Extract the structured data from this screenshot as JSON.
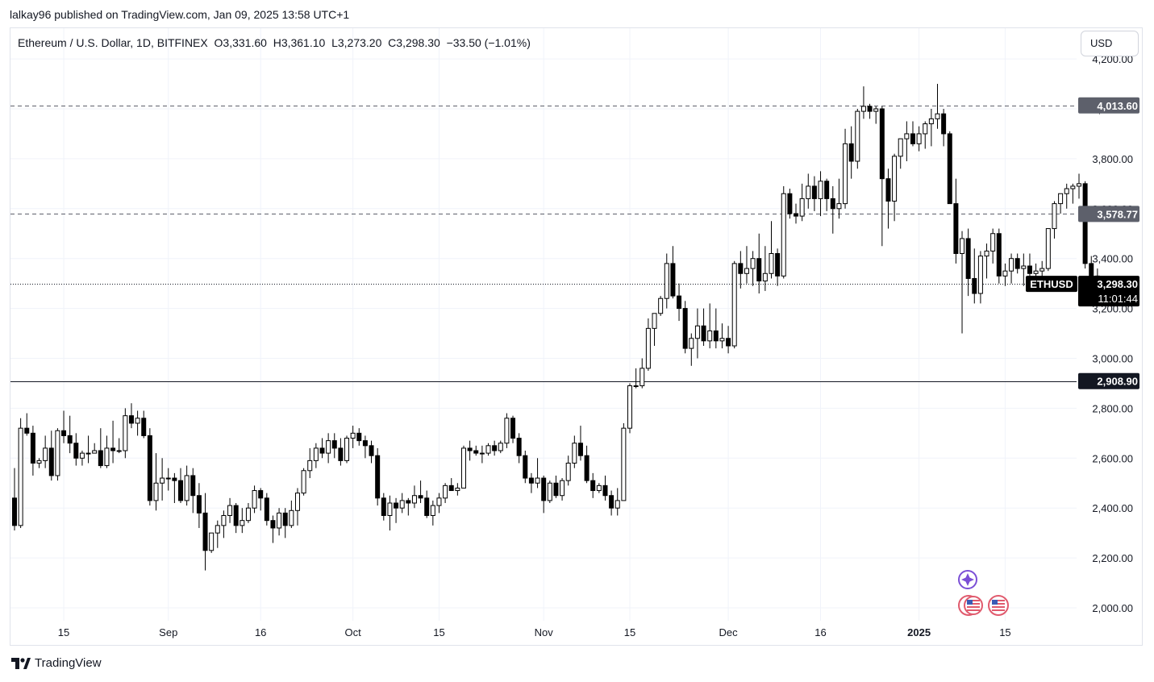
{
  "header": {
    "published": "lalkay96 published on TradingView.com, Jan 09, 2025 13:58 UTC+1"
  },
  "legend": {
    "symbol": "Ethereum / U.S. Dollar, 1D, BITFINEX",
    "open": "O3,331.60",
    "high": "H3,361.10",
    "low": "L3,273.20",
    "close": "C3,298.30",
    "change": "−33.50 (−1.01%)"
  },
  "currency_button": "USD",
  "brand": "TradingView",
  "colors": {
    "candle": "#000000",
    "candle_up_fill": "#ffffff",
    "grid": "#f0f3fa",
    "label_dark": "#131722",
    "label_grey": "#5d606b"
  },
  "chart_data": {
    "type": "candlestick",
    "symbol": "ETHUSD",
    "ylim": [
      1950,
      4260
    ],
    "y_ticks": [
      2000,
      2200,
      2400,
      2600,
      2800,
      3000,
      3200,
      3400,
      3600,
      3800,
      4000,
      4200
    ],
    "y_tick_labels": [
      "2,000.00",
      "2,200.00",
      "2,400.00",
      "2,600.00",
      "2,800.00",
      "3,000.00",
      "3,200.00",
      "3,400.00",
      "3,600.00",
      "3,800.00",
      "4,000.00",
      "4,200.00"
    ],
    "x_ticks": [
      {
        "label": "15",
        "date": "2024-08-15",
        "bold": false
      },
      {
        "label": "Sep",
        "date": "2024-09-01",
        "bold": false
      },
      {
        "label": "16",
        "date": "2024-09-16",
        "bold": false
      },
      {
        "label": "Oct",
        "date": "2024-10-01",
        "bold": false
      },
      {
        "label": "15",
        "date": "2024-10-15",
        "bold": false
      },
      {
        "label": "Nov",
        "date": "2024-11-01",
        "bold": false
      },
      {
        "label": "15",
        "date": "2024-11-15",
        "bold": false
      },
      {
        "label": "Dec",
        "date": "2024-12-01",
        "bold": false
      },
      {
        "label": "16",
        "date": "2024-12-16",
        "bold": false
      },
      {
        "label": "2025",
        "date": "2025-01-01",
        "bold": true
      },
      {
        "label": "15",
        "date": "2025-01-15",
        "bold": false
      }
    ],
    "horizontal_levels": [
      {
        "value": 4013.6,
        "label": "4,013.60",
        "style": "dashed"
      },
      {
        "value": 3578.77,
        "label": "3,578.77",
        "style": "dashed"
      },
      {
        "value": 2908.9,
        "label": "2,908.90",
        "style": "solid"
      }
    ],
    "last_price": {
      "value": 3298.3,
      "label": "3,298.30",
      "countdown": "11:01:44",
      "symbol_label": "ETHUSD"
    },
    "first_date": "2024-08-07",
    "candles": [
      [
        2440,
        2560,
        2310,
        2330
      ],
      [
        2330,
        2760,
        2320,
        2720
      ],
      [
        2720,
        2780,
        2690,
        2700
      ],
      [
        2700,
        2730,
        2530,
        2580
      ],
      [
        2580,
        2600,
        2560,
        2590
      ],
      [
        2590,
        2690,
        2560,
        2640
      ],
      [
        2640,
        2710,
        2510,
        2530
      ],
      [
        2530,
        2720,
        2510,
        2710
      ],
      [
        2710,
        2790,
        2660,
        2690
      ],
      [
        2690,
        2770,
        2620,
        2660
      ],
      [
        2660,
        2700,
        2570,
        2600
      ],
      [
        2600,
        2630,
        2570,
        2620
      ],
      [
        2620,
        2690,
        2580,
        2620
      ],
      [
        2620,
        2660,
        2620,
        2630
      ],
      [
        2630,
        2720,
        2560,
        2570
      ],
      [
        2570,
        2690,
        2560,
        2640
      ],
      [
        2640,
        2750,
        2580,
        2630
      ],
      [
        2630,
        2680,
        2620,
        2630
      ],
      [
        2630,
        2800,
        2600,
        2770
      ],
      [
        2770,
        2820,
        2720,
        2740
      ],
      [
        2740,
        2790,
        2690,
        2760
      ],
      [
        2760,
        2790,
        2680,
        2690
      ],
      [
        2690,
        2720,
        2410,
        2430
      ],
      [
        2430,
        2620,
        2390,
        2500
      ],
      [
        2500,
        2600,
        2430,
        2520
      ],
      [
        2520,
        2560,
        2470,
        2520
      ],
      [
        2520,
        2540,
        2420,
        2510
      ],
      [
        2510,
        2560,
        2420,
        2430
      ],
      [
        2430,
        2570,
        2410,
        2530
      ],
      [
        2530,
        2560,
        2380,
        2450
      ],
      [
        2450,
        2500,
        2320,
        2380
      ],
      [
        2380,
        2460,
        2150,
        2230
      ],
      [
        2230,
        2300,
        2220,
        2300
      ],
      [
        2300,
        2350,
        2240,
        2330
      ],
      [
        2330,
        2390,
        2280,
        2370
      ],
      [
        2370,
        2440,
        2340,
        2410
      ],
      [
        2410,
        2420,
        2300,
        2330
      ],
      [
        2330,
        2400,
        2300,
        2350
      ],
      [
        2350,
        2420,
        2340,
        2400
      ],
      [
        2400,
        2490,
        2380,
        2470
      ],
      [
        2470,
        2480,
        2390,
        2440
      ],
      [
        2440,
        2460,
        2330,
        2350
      ],
      [
        2350,
        2370,
        2260,
        2320
      ],
      [
        2320,
        2400,
        2290,
        2380
      ],
      [
        2380,
        2400,
        2280,
        2330
      ],
      [
        2330,
        2430,
        2320,
        2390
      ],
      [
        2390,
        2480,
        2330,
        2460
      ],
      [
        2460,
        2560,
        2450,
        2550
      ],
      [
        2550,
        2640,
        2520,
        2590
      ],
      [
        2590,
        2660,
        2560,
        2640
      ],
      [
        2640,
        2680,
        2600,
        2620
      ],
      [
        2620,
        2700,
        2580,
        2670
      ],
      [
        2670,
        2700,
        2600,
        2640
      ],
      [
        2640,
        2680,
        2570,
        2590
      ],
      [
        2590,
        2690,
        2580,
        2680
      ],
      [
        2680,
        2730,
        2640,
        2700
      ],
      [
        2700,
        2720,
        2650,
        2670
      ],
      [
        2670,
        2690,
        2600,
        2650
      ],
      [
        2650,
        2670,
        2580,
        2610
      ],
      [
        2610,
        2640,
        2410,
        2440
      ],
      [
        2440,
        2460,
        2350,
        2370
      ],
      [
        2370,
        2450,
        2310,
        2420
      ],
      [
        2420,
        2440,
        2340,
        2400
      ],
      [
        2400,
        2460,
        2380,
        2430
      ],
      [
        2430,
        2440,
        2370,
        2420
      ],
      [
        2420,
        2490,
        2400,
        2450
      ],
      [
        2450,
        2510,
        2420,
        2440
      ],
      [
        2440,
        2470,
        2360,
        2370
      ],
      [
        2370,
        2430,
        2330,
        2410
      ],
      [
        2410,
        2460,
        2380,
        2440
      ],
      [
        2440,
        2500,
        2420,
        2490
      ],
      [
        2490,
        2520,
        2470,
        2470
      ],
      [
        2470,
        2500,
        2450,
        2480
      ],
      [
        2480,
        2650,
        2480,
        2640
      ],
      [
        2640,
        2670,
        2590,
        2630
      ],
      [
        2630,
        2650,
        2610,
        2620
      ],
      [
        2620,
        2650,
        2580,
        2620
      ],
      [
        2620,
        2660,
        2610,
        2650
      ],
      [
        2650,
        2670,
        2610,
        2630
      ],
      [
        2630,
        2670,
        2620,
        2660
      ],
      [
        2660,
        2780,
        2640,
        2760
      ],
      [
        2760,
        2770,
        2660,
        2680
      ],
      [
        2680,
        2700,
        2580,
        2610
      ],
      [
        2610,
        2630,
        2500,
        2520
      ],
      [
        2520,
        2540,
        2460,
        2500
      ],
      [
        2500,
        2600,
        2480,
        2520
      ],
      [
        2520,
        2530,
        2380,
        2430
      ],
      [
        2430,
        2510,
        2420,
        2500
      ],
      [
        2500,
        2530,
        2440,
        2450
      ],
      [
        2450,
        2520,
        2430,
        2510
      ],
      [
        2510,
        2610,
        2490,
        2580
      ],
      [
        2580,
        2690,
        2560,
        2660
      ],
      [
        2660,
        2730,
        2590,
        2610
      ],
      [
        2610,
        2650,
        2500,
        2510
      ],
      [
        2510,
        2540,
        2440,
        2470
      ],
      [
        2470,
        2500,
        2460,
        2490
      ],
      [
        2490,
        2530,
        2430,
        2450
      ],
      [
        2450,
        2470,
        2370,
        2400
      ],
      [
        2400,
        2480,
        2370,
        2430
      ],
      [
        2430,
        2740,
        2430,
        2720
      ],
      [
        2720,
        2900,
        2700,
        2890
      ],
      [
        2890,
        2960,
        2880,
        2890
      ],
      [
        2890,
        3000,
        2880,
        2960
      ],
      [
        2960,
        3160,
        2950,
        3120
      ],
      [
        3120,
        3180,
        3050,
        3180
      ],
      [
        3180,
        3250,
        3170,
        3240
      ],
      [
        3240,
        3420,
        3200,
        3380
      ],
      [
        3380,
        3450,
        3240,
        3250
      ],
      [
        3250,
        3300,
        3150,
        3200
      ],
      [
        3200,
        3230,
        3020,
        3040
      ],
      [
        3040,
        3100,
        2970,
        3080
      ],
      [
        3080,
        3200,
        3000,
        3130
      ],
      [
        3130,
        3200,
        3050,
        3070
      ],
      [
        3070,
        3220,
        3040,
        3110
      ],
      [
        3110,
        3200,
        3040,
        3070
      ],
      [
        3070,
        3140,
        3040,
        3080
      ],
      [
        3080,
        3130,
        3020,
        3050
      ],
      [
        3050,
        3390,
        3040,
        3380
      ],
      [
        3380,
        3430,
        3280,
        3340
      ],
      [
        3340,
        3450,
        3300,
        3360
      ],
      [
        3360,
        3430,
        3290,
        3400
      ],
      [
        3400,
        3500,
        3260,
        3310
      ],
      [
        3310,
        3450,
        3270,
        3340
      ],
      [
        3340,
        3550,
        3320,
        3420
      ],
      [
        3420,
        3440,
        3290,
        3330
      ],
      [
        3330,
        3690,
        3320,
        3660
      ],
      [
        3660,
        3680,
        3560,
        3580
      ],
      [
        3580,
        3620,
        3540,
        3570
      ],
      [
        3570,
        3700,
        3550,
        3640
      ],
      [
        3640,
        3740,
        3600,
        3690
      ],
      [
        3690,
        3730,
        3590,
        3640
      ],
      [
        3640,
        3750,
        3570,
        3710
      ],
      [
        3710,
        3720,
        3590,
        3640
      ],
      [
        3640,
        3690,
        3500,
        3600
      ],
      [
        3600,
        3720,
        3560,
        3620
      ],
      [
        3620,
        3920,
        3600,
        3860
      ],
      [
        3860,
        3930,
        3720,
        3790
      ],
      [
        3790,
        4000,
        3760,
        3990
      ],
      [
        3990,
        4090,
        3960,
        4010
      ],
      [
        4010,
        4020,
        3960,
        3990
      ],
      [
        3990,
        4010,
        3940,
        4000
      ],
      [
        4000,
        4010,
        3450,
        3720
      ],
      [
        3720,
        3760,
        3520,
        3630
      ],
      [
        3630,
        3820,
        3550,
        3810
      ],
      [
        3810,
        3870,
        3760,
        3880
      ],
      [
        3880,
        3950,
        3790,
        3900
      ],
      [
        3900,
        3950,
        3850,
        3860
      ],
      [
        3860,
        3930,
        3830,
        3900
      ],
      [
        3900,
        3950,
        3840,
        3940
      ],
      [
        3940,
        4000,
        3850,
        3960
      ],
      [
        3960,
        4100,
        3920,
        3980
      ],
      [
        3980,
        4000,
        3850,
        3900
      ],
      [
        3900,
        3910,
        3620,
        3620
      ],
      [
        3620,
        3720,
        3380,
        3420
      ],
      [
        3420,
        3510,
        3100,
        3480
      ],
      [
        3480,
        3520,
        3250,
        3320
      ],
      [
        3320,
        3440,
        3220,
        3260
      ],
      [
        3260,
        3430,
        3220,
        3410
      ],
      [
        3410,
        3460,
        3320,
        3430
      ],
      [
        3430,
        3520,
        3380,
        3500
      ],
      [
        3500,
        3520,
        3300,
        3330
      ],
      [
        3330,
        3380,
        3290,
        3350
      ],
      [
        3350,
        3420,
        3300,
        3400
      ],
      [
        3400,
        3420,
        3340,
        3360
      ],
      [
        3360,
        3420,
        3290,
        3370
      ],
      [
        3370,
        3420,
        3310,
        3340
      ],
      [
        3340,
        3380,
        3300,
        3350
      ],
      [
        3350,
        3390,
        3320,
        3360
      ],
      [
        3360,
        3520,
        3350,
        3520
      ],
      [
        3520,
        3630,
        3480,
        3620
      ],
      [
        3620,
        3660,
        3580,
        3660
      ],
      [
        3660,
        3700,
        3600,
        3680
      ],
      [
        3680,
        3700,
        3620,
        3690
      ],
      [
        3690,
        3740,
        3640,
        3700
      ],
      [
        3700,
        3710,
        3360,
        3380
      ],
      [
        3380,
        3410,
        3270,
        3330
      ],
      [
        3330,
        3360,
        3210,
        3298
      ]
    ]
  }
}
